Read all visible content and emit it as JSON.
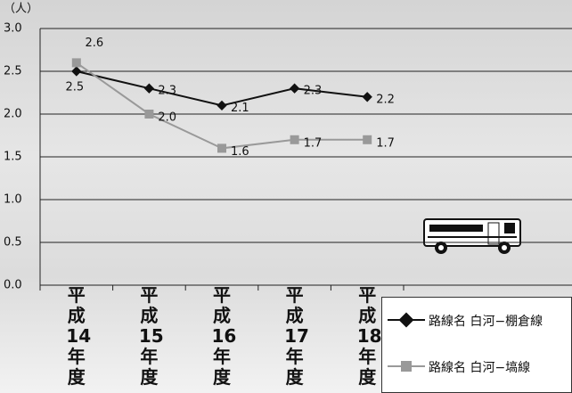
{
  "chart_data": {
    "type": "line",
    "y_unit": "（人）",
    "categories": [
      "平成14年度",
      "平成15年度",
      "平成16年度",
      "平成17年度",
      "平成18年度"
    ],
    "series": [
      {
        "name": "路線名 白河−棚倉線",
        "color": "#111111",
        "marker": "diamond",
        "values": [
          2.5,
          2.3,
          2.1,
          2.3,
          2.2
        ],
        "value_labels": [
          "2.5",
          "2.3",
          "2.1",
          "2.3",
          "2.2"
        ]
      },
      {
        "name": "路線名 白河−塙線",
        "color": "#999999",
        "marker": "square",
        "values": [
          2.6,
          2.0,
          1.6,
          1.7,
          1.7
        ],
        "value_labels": [
          "2.6",
          "2.0",
          "1.6",
          "1.7",
          "1.7"
        ]
      }
    ],
    "ylim": [
      0,
      3
    ],
    "yticks": [
      {
        "value": 0,
        "label": "0.0"
      },
      {
        "value": 0.5,
        "label": "0.5"
      },
      {
        "value": 1,
        "label": "1.0"
      },
      {
        "value": 1.5,
        "label": "1.5"
      },
      {
        "value": 2,
        "label": "2.0"
      },
      {
        "value": 2.5,
        "label": "2.5"
      },
      {
        "value": 3,
        "label": "3.0"
      }
    ],
    "grid": true
  }
}
